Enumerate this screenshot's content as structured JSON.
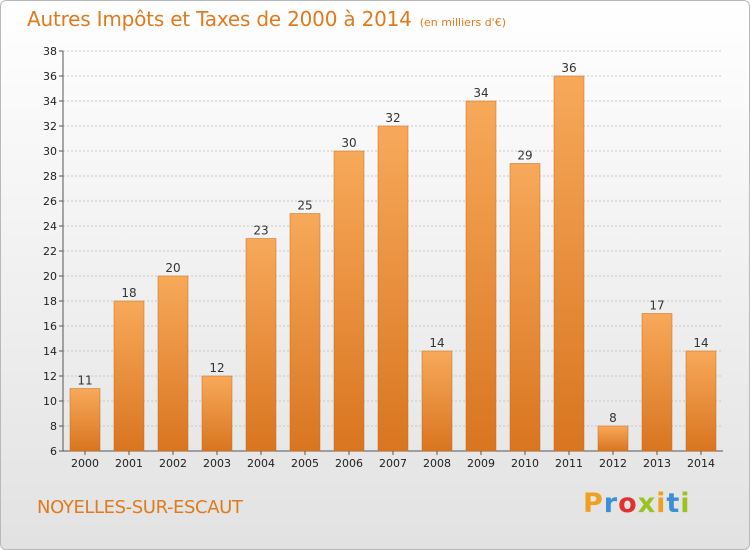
{
  "header": {
    "title": "Autres Impôts et Taxes de 2000 à 2014",
    "unit": "(en milliers d'€)"
  },
  "footer": {
    "location": "NOYELLES-SUR-ESCAUT",
    "logo_letters": [
      "P",
      "r",
      "o",
      "x",
      "i",
      "t",
      "i"
    ],
    "logo_colors": [
      "#f0a020",
      "#3a8fd8",
      "#e0342a",
      "#9bc31f",
      "#f0a020",
      "#3a8fd8",
      "#9bc31f"
    ]
  },
  "colors": {
    "title": "#e07a1c",
    "bar_light": "#f7a95a",
    "bar_dark": "#d97520",
    "grid": "#c8c8c8"
  },
  "chart_data": {
    "type": "bar",
    "categories": [
      "2000",
      "2001",
      "2002",
      "2003",
      "2004",
      "2005",
      "2006",
      "2007",
      "2008",
      "2009",
      "2010",
      "2011",
      "2012",
      "2013",
      "2014"
    ],
    "values": [
      11,
      18,
      20,
      12,
      23,
      25,
      30,
      32,
      14,
      34,
      29,
      36,
      8,
      17,
      14
    ],
    "title": "Autres Impôts et Taxes de 2000 à 2014",
    "xlabel": "",
    "ylabel": "",
    "ylim": [
      6,
      38
    ],
    "yticks": [
      6,
      8,
      10,
      12,
      14,
      16,
      18,
      20,
      22,
      24,
      26,
      28,
      30,
      32,
      34,
      36,
      38
    ],
    "grid": true,
    "legend": "none"
  }
}
